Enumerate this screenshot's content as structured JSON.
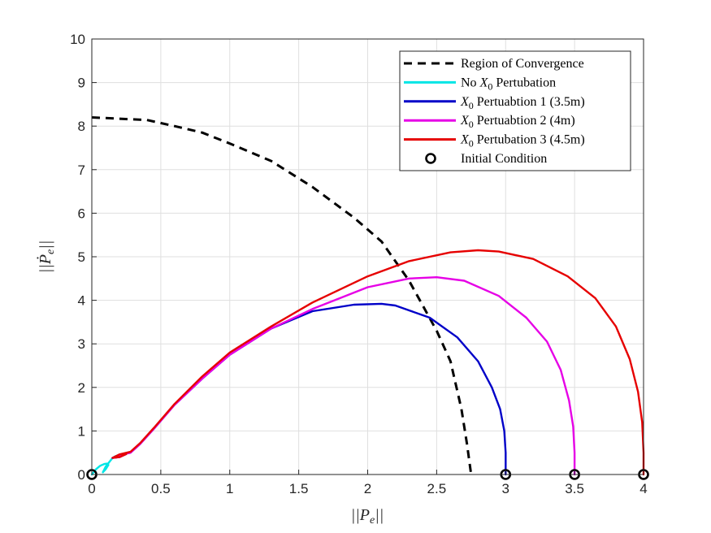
{
  "chart_data": {
    "type": "line",
    "xlabel": "||P_e||",
    "ylabel": "||Ṗ_e||",
    "xlim": [
      0,
      4
    ],
    "ylim": [
      0,
      10
    ],
    "xticks": [
      "0",
      "0.5",
      "1",
      "1.5",
      "2",
      "2.5",
      "3",
      "3.5",
      "4"
    ],
    "yticks": [
      "0",
      "1",
      "2",
      "3",
      "4",
      "5",
      "6",
      "7",
      "8",
      "9",
      "10"
    ],
    "grid": true,
    "legend_position": "top-right",
    "colors": {
      "roc": "#000000",
      "no_pert": "#00e5e5",
      "pert1": "#0000c8",
      "pert2": "#e600e6",
      "pert3": "#e60000",
      "initial": "#000000"
    },
    "series": [
      {
        "name": "Region of Convergence",
        "style": "dashed",
        "x": [
          0,
          0.2,
          0.4,
          0.6,
          0.8,
          1.0,
          1.3,
          1.6,
          1.9,
          2.1,
          2.3,
          2.5,
          2.6,
          2.68,
          2.72,
          2.75
        ],
        "y": [
          8.2,
          8.17,
          8.14,
          8.0,
          7.85,
          7.6,
          7.2,
          6.6,
          5.9,
          5.35,
          4.45,
          3.3,
          2.6,
          1.5,
          0.7,
          0
        ]
      },
      {
        "name": "No X0 Pertubation",
        "style": "solid",
        "x": [
          0,
          0.03,
          0.06,
          0.09,
          0.11,
          0.12,
          0.1,
          0.08,
          0.1,
          0.13,
          0.15,
          0.17,
          0.19
        ],
        "y": [
          0,
          0.12,
          0.2,
          0.24,
          0.25,
          0.22,
          0.12,
          0.05,
          0.18,
          0.3,
          0.38,
          0.42,
          0.44
        ]
      },
      {
        "name": "X0 Pertuabtion 1 (3.5m)",
        "style": "solid",
        "x": [
          3.0,
          3.0,
          2.99,
          2.96,
          2.9,
          2.8,
          2.65,
          2.45,
          2.2,
          2.1,
          1.9,
          1.6,
          1.3,
          1.0,
          0.8,
          0.6,
          0.45,
          0.35,
          0.28,
          0.2,
          0.15,
          0.2,
          0.25
        ],
        "y": [
          0,
          0.5,
          1.0,
          1.5,
          2.0,
          2.6,
          3.15,
          3.6,
          3.88,
          3.92,
          3.9,
          3.75,
          3.35,
          2.75,
          2.2,
          1.6,
          1.05,
          0.7,
          0.5,
          0.45,
          0.38,
          0.4,
          0.47
        ]
      },
      {
        "name": "X0 Pertuabtion 2 (4m)",
        "style": "solid",
        "x": [
          3.5,
          3.5,
          3.49,
          3.46,
          3.4,
          3.3,
          3.15,
          2.95,
          2.7,
          2.5,
          2.3,
          2.0,
          1.6,
          1.3,
          1.0,
          0.8,
          0.6,
          0.45,
          0.35,
          0.28,
          0.2,
          0.15,
          0.2,
          0.25
        ],
        "y": [
          0,
          0.5,
          1.1,
          1.7,
          2.4,
          3.05,
          3.6,
          4.1,
          4.45,
          4.53,
          4.5,
          4.3,
          3.8,
          3.35,
          2.75,
          2.2,
          1.6,
          1.05,
          0.7,
          0.5,
          0.45,
          0.38,
          0.4,
          0.47
        ]
      },
      {
        "name": "X0 Pertubation 3 (4.5m)",
        "style": "solid",
        "x": [
          4.0,
          4.0,
          3.99,
          3.96,
          3.9,
          3.8,
          3.65,
          3.45,
          3.2,
          2.95,
          2.8,
          2.6,
          2.3,
          2.0,
          1.6,
          1.3,
          1.0,
          0.8,
          0.6,
          0.45,
          0.35,
          0.28,
          0.2,
          0.15,
          0.2,
          0.25
        ],
        "y": [
          0,
          0.5,
          1.2,
          1.9,
          2.65,
          3.4,
          4.05,
          4.55,
          4.95,
          5.12,
          5.15,
          5.1,
          4.9,
          4.55,
          3.95,
          3.4,
          2.8,
          2.25,
          1.62,
          1.07,
          0.72,
          0.52,
          0.46,
          0.38,
          0.4,
          0.47
        ]
      },
      {
        "name": "Initial Condition",
        "style": "marker",
        "x": [
          0,
          3,
          3.5,
          4
        ],
        "y": [
          0,
          0,
          0,
          0
        ]
      }
    ],
    "legend": [
      {
        "label": "Region of Convergence",
        "key": "roc",
        "style": "dashed"
      },
      {
        "label": "No X0 Pertubation",
        "key": "no_pert",
        "style": "solid"
      },
      {
        "label": "X0 Pertuabtion 1 (3.5m)",
        "key": "pert1",
        "style": "solid"
      },
      {
        "label": "X0 Pertuabtion 2 (4m)",
        "key": "pert2",
        "style": "solid"
      },
      {
        "label": "X0 Pertubation 3 (4.5m)",
        "key": "pert3",
        "style": "solid"
      },
      {
        "label": "Initial Condition",
        "key": "initial",
        "style": "marker"
      }
    ]
  }
}
